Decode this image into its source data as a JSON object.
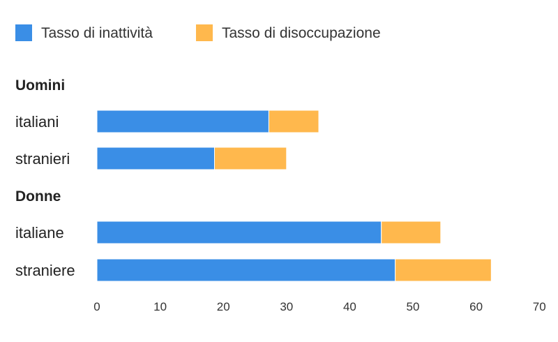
{
  "chart_data": {
    "type": "bar",
    "orientation": "horizontal",
    "stacked": true,
    "series": [
      {
        "name": "Tasso di inattività",
        "color": "#3a8ee6"
      },
      {
        "name": "Tasso di disoccupazione",
        "color": "#ffb84d"
      }
    ],
    "groups": [
      {
        "label": "Uomini",
        "rows": [
          {
            "label": "italiani",
            "values": [
              27.2,
              7.9
            ]
          },
          {
            "label": "stranieri",
            "values": [
              18.6,
              11.4
            ]
          }
        ]
      },
      {
        "label": "Donne",
        "rows": [
          {
            "label": "italiane",
            "values": [
              45.0,
              9.4
            ]
          },
          {
            "label": "straniere",
            "values": [
              47.2,
              15.2
            ]
          }
        ]
      }
    ],
    "xlim": [
      0,
      70
    ],
    "xticks": [
      "0",
      "10",
      "20",
      "30",
      "40",
      "50",
      "60",
      "70"
    ],
    "legend_position": "top-left",
    "grid": false
  }
}
